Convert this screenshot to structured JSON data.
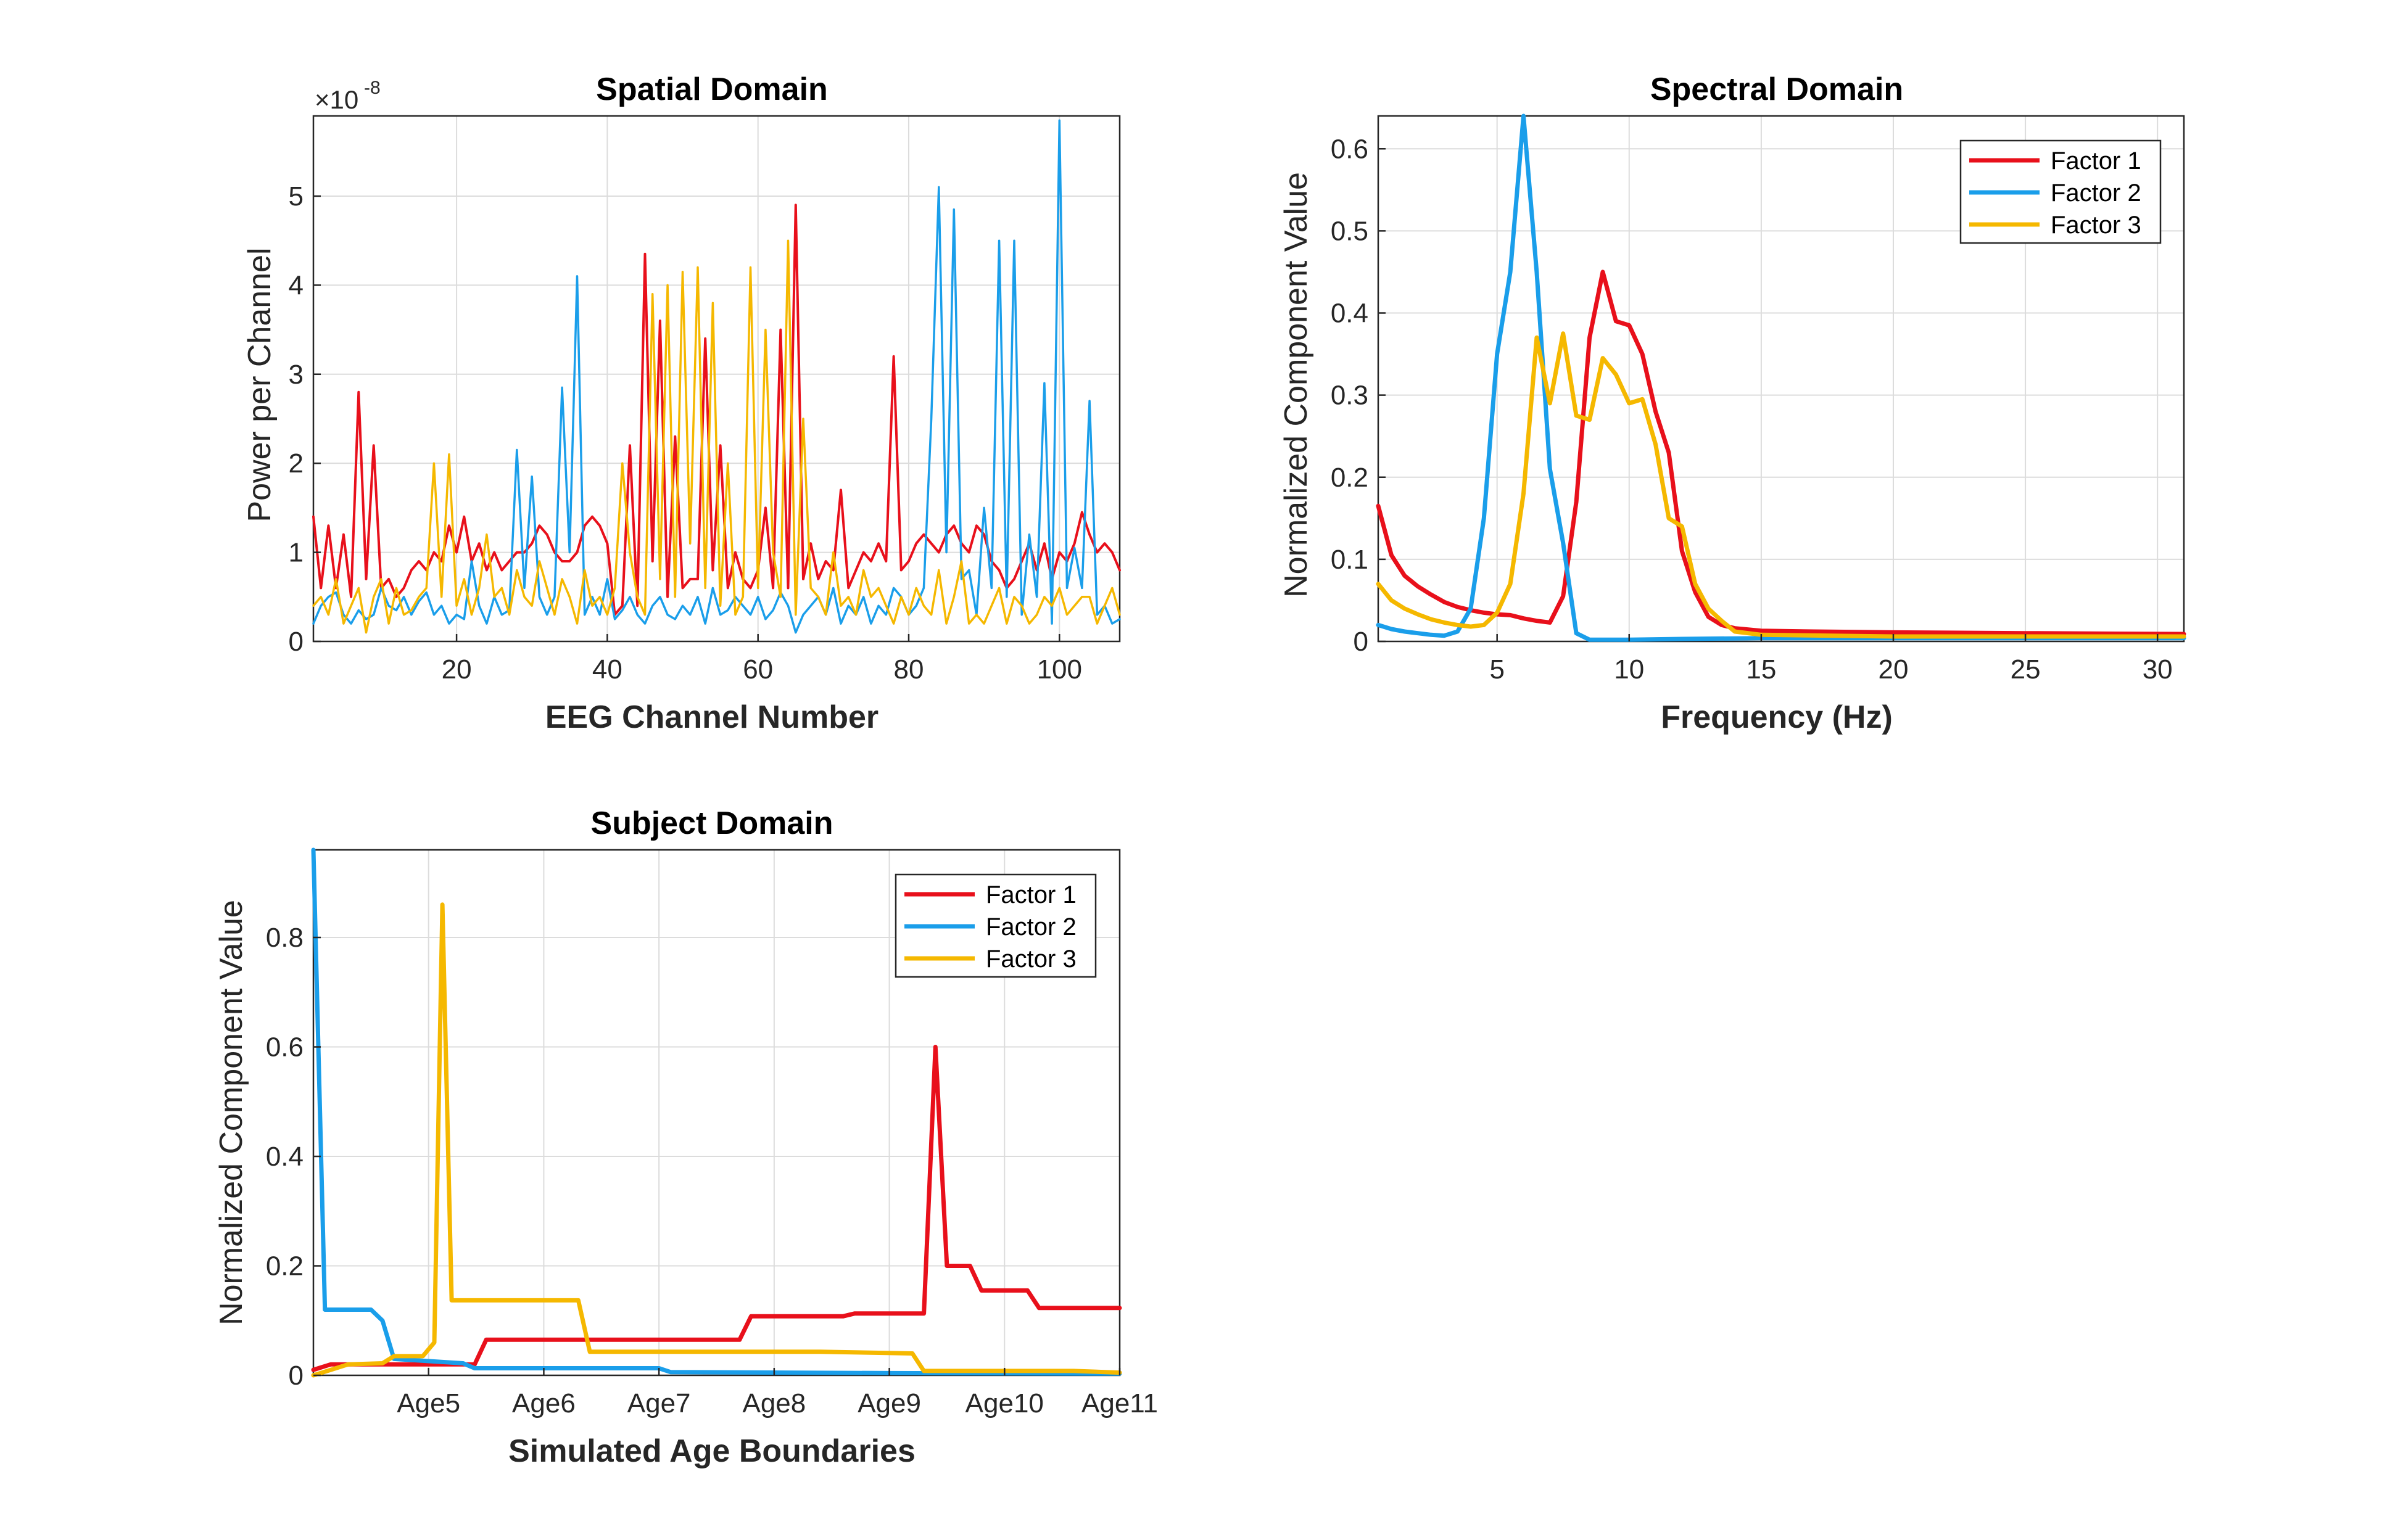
{
  "chart_data": [
    {
      "id": "spatial",
      "type": "line",
      "title": "Spatial Domain",
      "xlabel": "EEG Channel Number",
      "ylabel": "Power per Channel",
      "y_exponent_label": "×10",
      "y_exponent_power": "-8",
      "xlim": [
        1,
        108
      ],
      "ylim": [
        0,
        5.9
      ],
      "xticks": [
        20,
        40,
        60,
        80,
        100
      ],
      "yticks": [
        0,
        1,
        2,
        3,
        4,
        5
      ],
      "grid": true,
      "series": [
        {
          "name": "Factor 1",
          "color": "#e8101b",
          "width": 4,
          "y": [
            1.4,
            0.6,
            1.3,
            0.6,
            1.2,
            0.5,
            2.8,
            0.7,
            2.2,
            0.6,
            0.7,
            0.5,
            0.6,
            0.8,
            0.9,
            0.8,
            1.0,
            0.9,
            1.3,
            1.0,
            1.4,
            0.9,
            1.1,
            0.8,
            1.0,
            0.8,
            0.9,
            1.0,
            1.0,
            1.1,
            1.3,
            1.2,
            1.0,
            0.9,
            0.9,
            1.0,
            1.3,
            1.4,
            1.3,
            1.1,
            0.3,
            0.4,
            2.2,
            0.4,
            4.35,
            0.9,
            3.6,
            0.5,
            2.3,
            0.6,
            0.7,
            0.7,
            3.4,
            0.8,
            2.2,
            0.6,
            1.0,
            0.7,
            0.6,
            0.8,
            1.5,
            0.6,
            3.5,
            0.6,
            4.9,
            0.7,
            1.1,
            0.7,
            0.9,
            0.8,
            1.7,
            0.6,
            0.8,
            1.0,
            0.9,
            1.1,
            0.9,
            3.2,
            0.8,
            0.9,
            1.1,
            1.2,
            1.1,
            1.0,
            1.2,
            1.3,
            1.1,
            1.0,
            1.3,
            1.2,
            0.9,
            0.8,
            0.6,
            0.7,
            0.9,
            1.1,
            0.8,
            1.1,
            0.7,
            1.0,
            0.9,
            1.1,
            1.45,
            1.2,
            1.0,
            1.1,
            1.0,
            0.8
          ]
        },
        {
          "name": "Factor 2",
          "color": "#1a9eea",
          "width": 3.5,
          "y": [
            0.2,
            0.4,
            0.5,
            0.55,
            0.3,
            0.2,
            0.35,
            0.25,
            0.3,
            0.6,
            0.4,
            0.35,
            0.5,
            0.3,
            0.45,
            0.55,
            0.3,
            0.4,
            0.2,
            0.3,
            0.25,
            0.9,
            0.4,
            0.2,
            0.5,
            0.3,
            0.35,
            2.15,
            0.6,
            1.85,
            0.5,
            0.3,
            0.5,
            2.85,
            1.0,
            4.1,
            0.3,
            0.5,
            0.3,
            0.7,
            0.25,
            0.35,
            0.5,
            0.3,
            0.2,
            0.4,
            0.5,
            0.3,
            0.25,
            0.4,
            0.3,
            0.5,
            0.2,
            0.6,
            0.3,
            0.35,
            0.5,
            0.4,
            0.3,
            0.5,
            0.25,
            0.35,
            0.55,
            0.4,
            0.1,
            0.3,
            0.4,
            0.5,
            0.3,
            0.6,
            0.2,
            0.4,
            0.3,
            0.5,
            0.2,
            0.4,
            0.3,
            0.6,
            0.5,
            0.3,
            0.4,
            0.6,
            2.5,
            5.1,
            1.0,
            4.85,
            0.7,
            0.8,
            0.3,
            1.5,
            0.6,
            4.5,
            0.5,
            4.5,
            0.3,
            1.2,
            0.5,
            2.9,
            0.2,
            5.85,
            0.6,
            1.05,
            0.6,
            2.7,
            0.3,
            0.4,
            0.2,
            0.25
          ]
        },
        {
          "name": "Factor 3",
          "color": "#f5b800",
          "width": 3.5,
          "y": [
            0.4,
            0.5,
            0.3,
            0.7,
            0.2,
            0.4,
            0.6,
            0.1,
            0.5,
            0.7,
            0.2,
            0.6,
            0.3,
            0.35,
            0.5,
            0.6,
            2.0,
            0.5,
            2.1,
            0.4,
            0.7,
            0.3,
            0.6,
            1.2,
            0.5,
            0.6,
            0.3,
            0.8,
            0.5,
            0.4,
            0.9,
            0.6,
            0.3,
            0.7,
            0.5,
            0.2,
            0.8,
            0.4,
            0.5,
            0.3,
            0.6,
            2.0,
            1.0,
            0.5,
            0.3,
            3.9,
            0.7,
            4.0,
            0.5,
            4.15,
            1.1,
            4.2,
            0.6,
            3.8,
            0.4,
            2.0,
            0.3,
            0.5,
            4.2,
            0.6,
            3.5,
            1.0,
            0.5,
            4.5,
            0.3,
            2.5,
            0.6,
            0.5,
            0.3,
            1.0,
            0.4,
            0.5,
            0.3,
            0.8,
            0.5,
            0.6,
            0.4,
            0.2,
            0.5,
            0.3,
            0.6,
            0.4,
            0.3,
            0.8,
            0.2,
            0.5,
            0.9,
            0.2,
            0.3,
            0.2,
            0.4,
            0.6,
            0.2,
            0.5,
            0.4,
            0.2,
            0.3,
            0.5,
            0.4,
            0.6,
            0.3,
            0.4,
            0.5,
            0.5,
            0.2,
            0.4,
            0.6,
            0.3
          ]
        }
      ]
    },
    {
      "id": "spectral",
      "type": "line",
      "title": "Spectral Domain",
      "xlabel": "Frequency (Hz)",
      "ylabel": "Normalized Component Value",
      "xlim": [
        0.5,
        31
      ],
      "ylim": [
        0,
        0.64
      ],
      "xticks": [
        5,
        10,
        15,
        20,
        25,
        30
      ],
      "yticks": [
        0,
        0.1,
        0.2,
        0.3,
        0.4,
        0.5,
        0.6
      ],
      "grid": true,
      "legend": "top-right",
      "series": [
        {
          "name": "Factor 1",
          "color": "#e8101b",
          "width": 7,
          "x": [
            0.5,
            1.0,
            1.5,
            2.0,
            2.5,
            3.0,
            3.5,
            4.0,
            4.5,
            5.0,
            5.5,
            6.0,
            6.5,
            7.0,
            7.5,
            8.0,
            8.5,
            9.0,
            9.5,
            10.0,
            10.5,
            11.0,
            11.5,
            12.0,
            12.5,
            13.0,
            13.5,
            14.0,
            15.0,
            17.0,
            20.0,
            25.0,
            31.0
          ],
          "y": [
            0.165,
            0.105,
            0.08,
            0.067,
            0.057,
            0.048,
            0.042,
            0.038,
            0.035,
            0.033,
            0.032,
            0.028,
            0.025,
            0.023,
            0.055,
            0.17,
            0.37,
            0.45,
            0.39,
            0.385,
            0.35,
            0.28,
            0.23,
            0.11,
            0.06,
            0.03,
            0.02,
            0.016,
            0.013,
            0.012,
            0.011,
            0.01,
            0.009
          ]
        },
        {
          "name": "Factor 2",
          "color": "#1a9eea",
          "width": 7,
          "x": [
            0.5,
            1.0,
            1.5,
            2.0,
            2.5,
            3.0,
            3.5,
            4.0,
            4.5,
            5.0,
            5.5,
            6.0,
            6.5,
            7.0,
            7.5,
            8.0,
            8.5,
            9.0,
            10.0,
            12.0,
            15.0,
            20.0,
            31.0
          ],
          "y": [
            0.02,
            0.015,
            0.012,
            0.01,
            0.008,
            0.007,
            0.012,
            0.04,
            0.15,
            0.35,
            0.45,
            0.64,
            0.45,
            0.21,
            0.12,
            0.01,
            0.002,
            0.002,
            0.002,
            0.003,
            0.004,
            0.004,
            0.004
          ]
        },
        {
          "name": "Factor 3",
          "color": "#f5b800",
          "width": 7,
          "x": [
            0.5,
            1.0,
            1.5,
            2.0,
            2.5,
            3.0,
            3.5,
            4.0,
            4.5,
            5.0,
            5.5,
            6.0,
            6.5,
            7.0,
            7.5,
            8.0,
            8.5,
            9.0,
            9.5,
            10.0,
            10.5,
            11.0,
            11.5,
            12.0,
            12.5,
            13.0,
            13.5,
            14.0,
            15.0,
            20.0,
            31.0
          ],
          "y": [
            0.07,
            0.05,
            0.04,
            0.033,
            0.027,
            0.023,
            0.02,
            0.018,
            0.02,
            0.035,
            0.07,
            0.18,
            0.37,
            0.29,
            0.375,
            0.275,
            0.27,
            0.345,
            0.325,
            0.29,
            0.295,
            0.24,
            0.15,
            0.14,
            0.07,
            0.04,
            0.025,
            0.012,
            0.008,
            0.006,
            0.006
          ]
        }
      ],
      "legend_labels": [
        "Factor 1",
        "Factor 2",
        "Factor 3"
      ]
    },
    {
      "id": "subject",
      "type": "line",
      "title": "Subject Domain",
      "xlabel": "Simulated Age Boundaries",
      "ylabel": "Normalized Component Value",
      "xlim": [
        0,
        7
      ],
      "ylim": [
        0,
        0.96
      ],
      "xtick_positions": [
        1,
        2,
        3,
        4,
        5,
        6,
        7
      ],
      "xtick_labels": [
        "Age5",
        "Age6",
        "Age7",
        "Age8",
        "Age9",
        "Age10",
        "Age11"
      ],
      "yticks": [
        0,
        0.2,
        0.4,
        0.6,
        0.8
      ],
      "grid": true,
      "legend": "top-right",
      "series": [
        {
          "name": "Factor 1",
          "color": "#e8101b",
          "width": 7,
          "x": [
            0,
            0.15,
            1.4,
            1.5,
            3.7,
            3.8,
            4.6,
            4.7,
            5.3,
            5.4,
            5.5,
            5.7,
            5.8,
            6.2,
            6.3,
            7.0
          ],
          "y": [
            0.01,
            0.02,
            0.02,
            0.065,
            0.065,
            0.108,
            0.108,
            0.113,
            0.113,
            0.6,
            0.2,
            0.2,
            0.155,
            0.155,
            0.123,
            0.123
          ]
        },
        {
          "name": "Factor 2",
          "color": "#1a9eea",
          "width": 7,
          "x": [
            0,
            0.1,
            0.5,
            0.6,
            0.7,
            1.3,
            1.4,
            3.0,
            3.1,
            5.0,
            7.0
          ],
          "y": [
            0.96,
            0.12,
            0.12,
            0.1,
            0.03,
            0.022,
            0.013,
            0.013,
            0.006,
            0.004,
            0.003
          ]
        },
        {
          "name": "Factor 3",
          "color": "#f5b800",
          "width": 7,
          "x": [
            0,
            0.3,
            0.6,
            0.7,
            0.95,
            1.05,
            1.12,
            1.2,
            2.3,
            2.4,
            4.4,
            5.2,
            5.3,
            6.6,
            7.0
          ],
          "y": [
            0,
            0.02,
            0.022,
            0.035,
            0.035,
            0.06,
            0.86,
            0.137,
            0.137,
            0.043,
            0.043,
            0.04,
            0.008,
            0.008,
            0.005
          ]
        }
      ],
      "legend_labels": [
        "Factor 1",
        "Factor 2",
        "Factor 3"
      ]
    }
  ]
}
